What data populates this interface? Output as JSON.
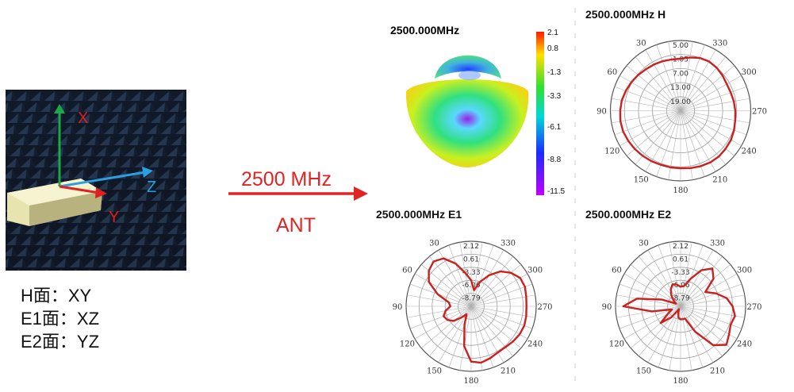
{
  "setup": {
    "axis_labels": {
      "x": "X",
      "y": "Y",
      "z": "Z"
    },
    "planes": [
      "H面：XY",
      "E1面：XZ",
      "E2面：YZ"
    ]
  },
  "arrow": {
    "frequency": "2500 MHz",
    "antenna": "ANT",
    "color": "#e02424"
  },
  "pattern3d": {
    "title": "2500.000MHz",
    "colorbar_labels": [
      "2.1",
      "0.8",
      "-1.3",
      "-3.3",
      "-6.1",
      "-8.8",
      "-11.5"
    ],
    "colorbar_colors": [
      "#ff1a00",
      "#ffe000",
      "#30e030",
      "#00d8d8",
      "#1a2cff",
      "#c000ff"
    ]
  },
  "polar_plots": [
    {
      "title": "2500.000MHz  H",
      "radial_labels": [
        "5.00",
        "1.05",
        "7.00",
        "13.00",
        "19.00"
      ],
      "angle_labels": [
        "30",
        "330",
        "60",
        "300",
        "90",
        "270",
        "120",
        "240",
        "150",
        "210",
        "180"
      ],
      "curve_color": "#cc1f1f",
      "pattern": [
        0.74,
        0.74,
        0.75,
        0.76,
        0.77,
        0.79,
        0.81,
        0.83,
        0.85,
        0.86,
        0.87,
        0.87,
        0.86,
        0.85,
        0.84,
        0.83,
        0.82,
        0.82,
        0.82,
        0.83,
        0.84,
        0.85,
        0.85,
        0.84,
        0.83,
        0.81,
        0.79,
        0.78,
        0.77,
        0.76,
        0.76,
        0.78,
        0.8,
        0.81,
        0.8,
        0.77
      ]
    },
    {
      "title": "2500.000MHz  E1",
      "radial_labels": [
        "2.12",
        "0.61",
        "-3.33",
        "-6.06",
        "-8.79"
      ],
      "angle_labels": [
        "30",
        "330",
        "60",
        "300",
        "90",
        "270",
        "120",
        "240",
        "150",
        "210",
        "180"
      ],
      "curve_color": "#cc1f1f",
      "pattern": [
        0.4,
        0.52,
        0.7,
        0.85,
        0.9,
        0.85,
        0.75,
        0.55,
        0.35,
        0.32,
        0.4,
        0.45,
        0.42,
        0.35,
        0.22,
        0.14,
        0.3,
        0.62,
        0.85,
        0.88,
        0.85,
        0.82,
        0.82,
        0.84,
        0.86,
        0.87,
        0.86,
        0.85,
        0.86,
        0.88,
        0.87,
        0.8,
        0.7,
        0.55,
        0.4,
        0.25
      ]
    },
    {
      "title": "2500.000MHz  E2",
      "radial_labels": [
        "2.12",
        "0.61",
        "-3.33",
        "-6.06",
        "-8.79"
      ],
      "angle_labels": [
        "30",
        "330",
        "60",
        "300",
        "90",
        "270",
        "120",
        "240",
        "150",
        "210",
        "180"
      ],
      "curve_color": "#cc1f1f",
      "pattern": [
        0.3,
        0.34,
        0.36,
        0.3,
        0.22,
        0.14,
        0.08,
        0.3,
        0.68,
        0.88,
        0.45,
        0.14,
        0.22,
        0.4,
        0.22,
        0.05,
        0.1,
        0.18,
        0.2,
        0.2,
        0.2,
        0.45,
        0.78,
        0.92,
        0.86,
        0.82,
        0.85,
        0.8,
        0.72,
        0.58,
        0.44,
        0.66,
        0.76,
        0.64,
        0.45,
        0.32
      ]
    }
  ]
}
